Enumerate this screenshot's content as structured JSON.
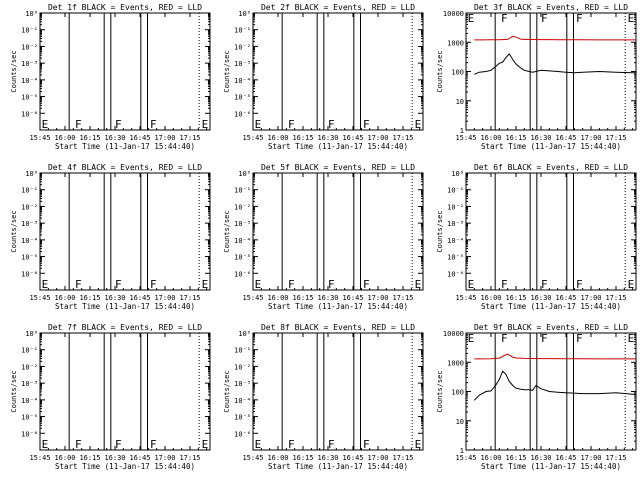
{
  "xlabel": "Start Time (11-Jan-17 15:44:40)",
  "ylabel": "Counts/sec",
  "x_ticks": [
    "15:45",
    "16:00",
    "16:15",
    "16:30",
    "16:45",
    "17:00",
    "17:15"
  ],
  "x_range_min": [
    0,
    102
  ],
  "y_ticks_empty": [
    "10⁰",
    "10⁻¹",
    "10⁻²",
    "10⁻³",
    "10⁻⁴",
    "10⁻⁵",
    "10⁻⁶"
  ],
  "y_ticks_counts": [
    "1",
    "10",
    "100",
    "1000",
    "10000"
  ],
  "colors": {
    "events": "#000000",
    "lld": "#cc0000"
  },
  "event_markers": {
    "solid_lines_min": [
      17.5,
      38.5,
      42.5,
      60.5,
      64.5
    ],
    "dotted_lines_min": [
      95.5
    ],
    "labels": [
      {
        "text": "E",
        "at_min": 1
      },
      {
        "text": "F",
        "at_min": 21
      },
      {
        "text": "F",
        "at_min": 45
      },
      {
        "text": "F",
        "at_min": 66
      },
      {
        "text": "E",
        "at_min": 97
      }
    ]
  },
  "chart_data": [
    {
      "type": "line",
      "title": "Det 1f BLACK = Events, RED = LLD",
      "yscale": "log",
      "ylim": [
        1e-07,
        1
      ],
      "series": []
    },
    {
      "type": "line",
      "title": "Det 2f BLACK = Events, RED = LLD",
      "yscale": "log",
      "ylim": [
        1e-07,
        1
      ],
      "series": []
    },
    {
      "type": "line",
      "title": "Det 3f BLACK = Events, RED = LLD",
      "yscale": "log",
      "ylim": [
        1,
        10000
      ],
      "series": [
        {
          "color": "#cc0000",
          "x": [
            5,
            10,
            15,
            20,
            25,
            28,
            30,
            33,
            35,
            40,
            45,
            50,
            55,
            60,
            65,
            70,
            80,
            90,
            100,
            102
          ],
          "values": [
            1200,
            1200,
            1210,
            1220,
            1250,
            1600,
            1500,
            1260,
            1250,
            1240,
            1230,
            1230,
            1220,
            1220,
            1210,
            1210,
            1200,
            1200,
            1200,
            1200
          ]
        },
        {
          "color": "#000000",
          "x": [
            5,
            8,
            12,
            15,
            18,
            20,
            22,
            24,
            26,
            28,
            30,
            33,
            35,
            38,
            40,
            45,
            50,
            55,
            60,
            65,
            70,
            80,
            90,
            100,
            102
          ],
          "values": [
            80,
            95,
            100,
            110,
            150,
            190,
            210,
            300,
            400,
            260,
            180,
            130,
            110,
            100,
            95,
            110,
            105,
            100,
            95,
            90,
            95,
            100,
            95,
            90,
            90
          ]
        }
      ]
    },
    {
      "type": "line",
      "title": "Det 4f BLACK = Events, RED = LLD",
      "yscale": "log",
      "ylim": [
        1e-07,
        1
      ],
      "series": []
    },
    {
      "type": "line",
      "title": "Det 5f BLACK = Events, RED = LLD",
      "yscale": "log",
      "ylim": [
        1e-07,
        1
      ],
      "series": []
    },
    {
      "type": "line",
      "title": "Det 6f BLACK = Events, RED = LLD",
      "yscale": "log",
      "ylim": [
        1e-07,
        1
      ],
      "series": []
    },
    {
      "type": "line",
      "title": "Det 7f BLACK = Events, RED = LLD",
      "yscale": "log",
      "ylim": [
        1e-07,
        1
      ],
      "series": []
    },
    {
      "type": "line",
      "title": "Det 8f BLACK = Events, RED = LLD",
      "yscale": "log",
      "ylim": [
        1e-07,
        1
      ],
      "series": []
    },
    {
      "type": "line",
      "title": "Det 9f BLACK = Events, RED = LLD",
      "yscale": "log",
      "ylim": [
        1,
        10000
      ],
      "series": [
        {
          "color": "#cc0000",
          "x": [
            5,
            10,
            15,
            20,
            23,
            25,
            28,
            30,
            35,
            40,
            45,
            50,
            60,
            70,
            80,
            90,
            100,
            102
          ],
          "values": [
            1300,
            1300,
            1320,
            1380,
            1700,
            1900,
            1500,
            1400,
            1350,
            1340,
            1330,
            1330,
            1320,
            1310,
            1300,
            1300,
            1300,
            1300
          ]
        },
        {
          "color": "#000000",
          "x": [
            5,
            8,
            12,
            15,
            18,
            20,
            22,
            24,
            26,
            28,
            30,
            33,
            35,
            38,
            40,
            42,
            45,
            50,
            55,
            60,
            70,
            80,
            90,
            100,
            102
          ],
          "values": [
            50,
            75,
            100,
            105,
            170,
            260,
            500,
            380,
            220,
            160,
            130,
            120,
            115,
            115,
            110,
            160,
            125,
            100,
            95,
            90,
            85,
            85,
            90,
            80,
            80
          ]
        }
      ]
    }
  ]
}
